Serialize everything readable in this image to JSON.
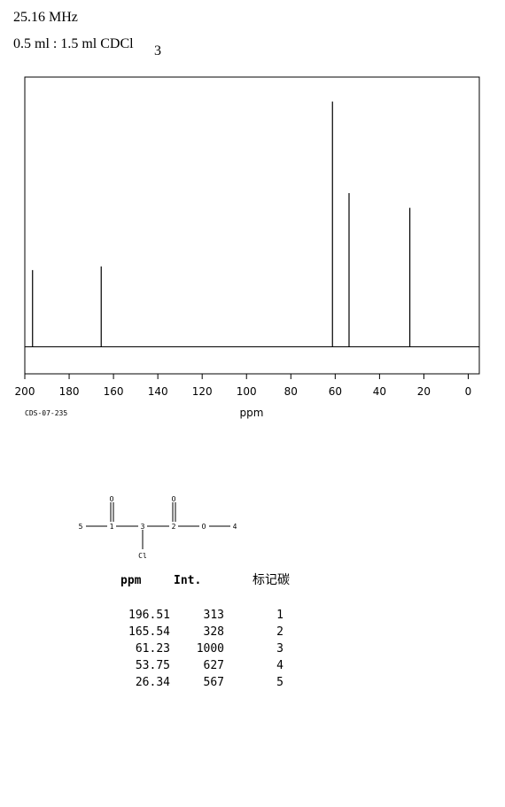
{
  "header": {
    "frequency": "25.16 MHz",
    "solvent": "0.5 ml : 1.5 ml CDCl",
    "solvent_subscript": "3"
  },
  "chart_data": {
    "type": "stick",
    "x_label": "ppm",
    "x": [
      196.51,
      165.54,
      61.23,
      53.75,
      26.34
    ],
    "values": [
      313,
      328,
      1000,
      627,
      567
    ],
    "color": "#000000",
    "xlim": [
      200,
      -5
    ],
    "xticks": [
      200,
      180,
      160,
      140,
      120,
      100,
      80,
      60,
      40,
      20,
      0
    ],
    "ylim": [
      -110,
      1100
    ]
  },
  "code": "CDS-07-235",
  "structure": {
    "atoms": [
      "O",
      "O",
      "5",
      "1",
      "3",
      "2",
      "O",
      "4",
      "Cl"
    ]
  },
  "table": {
    "columns": [
      "ppm",
      "Int.",
      "标记碳"
    ],
    "carbons": [
      "1",
      "2",
      "3",
      "4",
      "5"
    ]
  }
}
